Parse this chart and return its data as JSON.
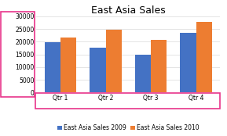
{
  "title": "East Asia Sales",
  "categories": [
    "Qtr 1",
    "Qtr 2",
    "Qtr 3",
    "Qtr 4"
  ],
  "series": [
    {
      "label": "East Asia Sales 2009",
      "color": "#4472C4",
      "values": [
        19800,
        17700,
        14800,
        23500
      ]
    },
    {
      "label": "East Asia Sales 2010",
      "color": "#ED7D31",
      "values": [
        21600,
        24800,
        20700,
        27800
      ]
    }
  ],
  "ylim": [
    0,
    30000
  ],
  "yticks": [
    0,
    5000,
    10000,
    15000,
    20000,
    25000,
    30000
  ],
  "bg_color": "#FFFFFF",
  "plot_bg_color": "#FFFFFF",
  "grid_color": "#D9D9D9",
  "pink_color": "#E8338A",
  "title_fontsize": 9,
  "tick_fontsize": 5.5,
  "legend_fontsize": 5.5,
  "bar_width": 0.35
}
